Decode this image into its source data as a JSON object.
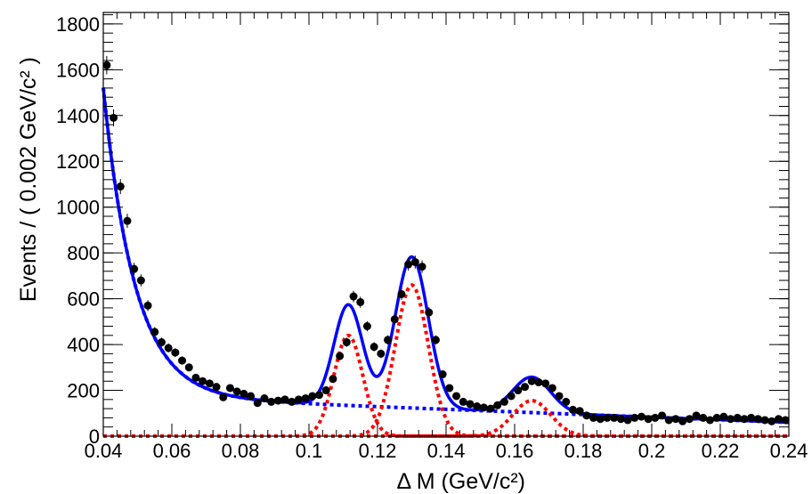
{
  "chart_data": {
    "type": "scatter",
    "xlabel": "Δ M (GeV/c²)",
    "ylabel": "Events / ( 0.002 GeV/c² )",
    "xlim": [
      0.04,
      0.24
    ],
    "ylim": [
      0,
      1850
    ],
    "x_ticks": [
      0.04,
      0.06,
      0.08,
      0.1,
      0.12,
      0.14,
      0.16,
      0.18,
      0.2,
      0.22,
      0.24
    ],
    "x_tick_labels": [
      "0.04",
      "0.06",
      "0.08",
      "0.1",
      "0.12",
      "0.14",
      "0.16",
      "0.18",
      "0.2",
      "0.22",
      "0.24"
    ],
    "y_ticks": [
      0,
      200,
      400,
      600,
      800,
      1000,
      1200,
      1400,
      1600,
      1800
    ],
    "y_tick_labels": [
      "0",
      "200",
      "400",
      "600",
      "800",
      "1000",
      "1200",
      "1400",
      "1600",
      "1800"
    ],
    "grid": false,
    "series": [
      {
        "kind": "data-points",
        "color": "#000000",
        "x": [
          0.041,
          0.043,
          0.045,
          0.047,
          0.049,
          0.051,
          0.053,
          0.055,
          0.057,
          0.059,
          0.061,
          0.063,
          0.065,
          0.067,
          0.069,
          0.071,
          0.073,
          0.075,
          0.077,
          0.079,
          0.081,
          0.083,
          0.085,
          0.087,
          0.089,
          0.091,
          0.093,
          0.095,
          0.097,
          0.099,
          0.101,
          0.103,
          0.105,
          0.107,
          0.109,
          0.111,
          0.113,
          0.115,
          0.117,
          0.119,
          0.121,
          0.123,
          0.125,
          0.127,
          0.129,
          0.131,
          0.133,
          0.135,
          0.137,
          0.139,
          0.141,
          0.143,
          0.145,
          0.147,
          0.149,
          0.151,
          0.153,
          0.155,
          0.157,
          0.159,
          0.161,
          0.163,
          0.165,
          0.167,
          0.169,
          0.171,
          0.173,
          0.175,
          0.177,
          0.179,
          0.181,
          0.183,
          0.185,
          0.187,
          0.189,
          0.191,
          0.193,
          0.195,
          0.197,
          0.199,
          0.201,
          0.203,
          0.205,
          0.207,
          0.209,
          0.211,
          0.213,
          0.215,
          0.217,
          0.219,
          0.221,
          0.223,
          0.225,
          0.227,
          0.229,
          0.231,
          0.233,
          0.235,
          0.237,
          0.239
        ],
        "y": [
          1620,
          1390,
          1090,
          940,
          730,
          680,
          570,
          455,
          410,
          385,
          365,
          330,
          300,
          255,
          240,
          230,
          215,
          170,
          210,
          195,
          185,
          175,
          145,
          165,
          150,
          155,
          160,
          150,
          160,
          165,
          175,
          180,
          200,
          250,
          350,
          410,
          610,
          585,
          480,
          390,
          360,
          420,
          510,
          620,
          750,
          760,
          740,
          540,
          420,
          270,
          210,
          175,
          150,
          140,
          130,
          125,
          120,
          135,
          150,
          175,
          200,
          215,
          240,
          235,
          230,
          210,
          175,
          150,
          115,
          110,
          90,
          80,
          75,
          80,
          80,
          75,
          70,
          80,
          85,
          75,
          80,
          90,
          70,
          75,
          65,
          75,
          90,
          80,
          70,
          80,
          85,
          75,
          80,
          75,
          80,
          75,
          70,
          65,
          75,
          70
        ],
        "errors": [
          40,
          37,
          33,
          31,
          27,
          26,
          24,
          21,
          20,
          20,
          19,
          18,
          17,
          16,
          15,
          15,
          15,
          13,
          14,
          14,
          14,
          13,
          12,
          13,
          12,
          12,
          13,
          12,
          13,
          13,
          13,
          13,
          14,
          16,
          19,
          20,
          25,
          24,
          22,
          20,
          19,
          20,
          23,
          25,
          27,
          28,
          27,
          23,
          20,
          16,
          14,
          13,
          12,
          12,
          11,
          11,
          11,
          12,
          12,
          13,
          14,
          15,
          15,
          15,
          15,
          14,
          13,
          12,
          11,
          10,
          9,
          9,
          9,
          9,
          9,
          9,
          8,
          9,
          9,
          9,
          9,
          9,
          8,
          9,
          8,
          9,
          9,
          9,
          8,
          9,
          9,
          9,
          9,
          9,
          9,
          9,
          8,
          8,
          9,
          8
        ]
      },
      {
        "kind": "total-fit",
        "style": "solid",
        "color": "#0000ff"
      },
      {
        "kind": "background-component",
        "style": "dotted",
        "color": "#0000ff"
      },
      {
        "kind": "signal-components",
        "style": "dotted",
        "color": "#ff0000",
        "peaks": [
          {
            "mean": 0.1115,
            "sigma": 0.0042,
            "amplitude": 440
          },
          {
            "mean": 0.13,
            "sigma": 0.0048,
            "amplitude": 660
          },
          {
            "mean": 0.165,
            "sigma": 0.0055,
            "amplitude": 155
          }
        ]
      }
    ]
  }
}
